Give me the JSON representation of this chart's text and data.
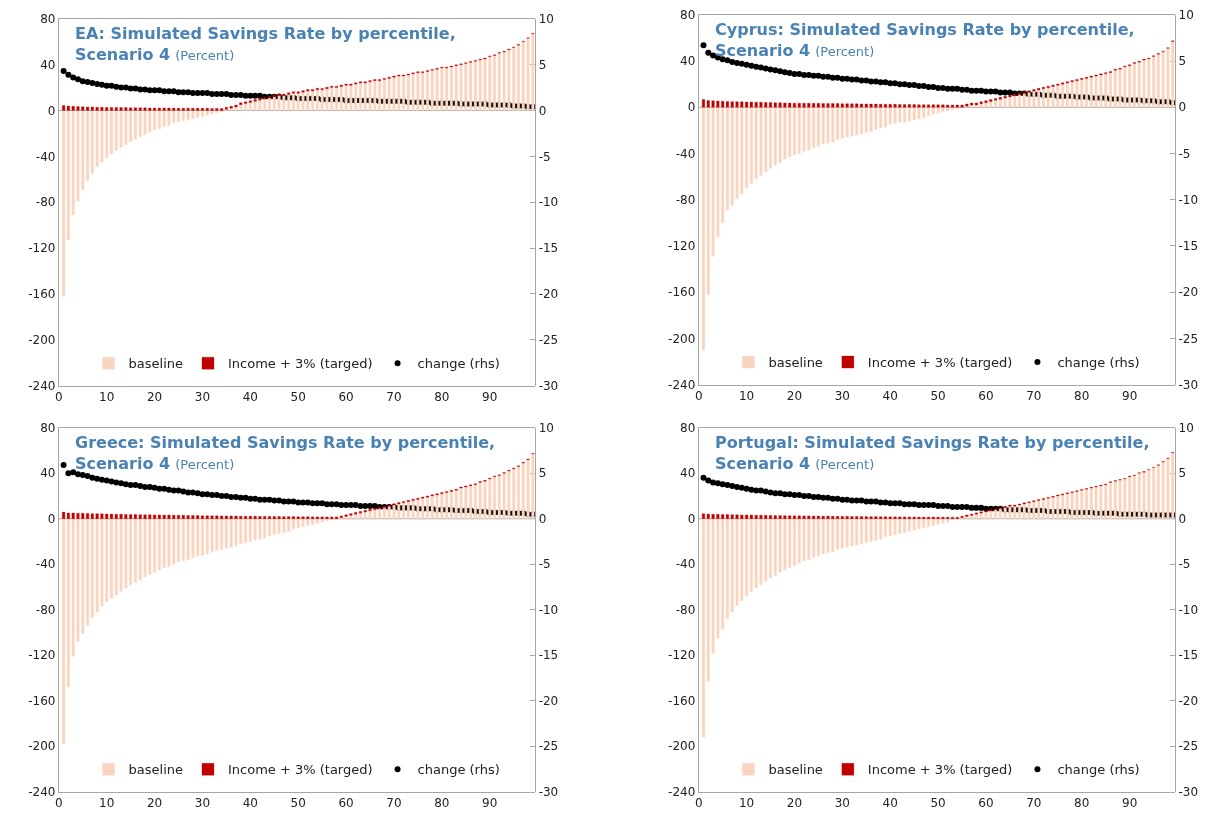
{
  "chart_data": [
    {
      "type": "bar",
      "title": "EA: Simulated Savings Rate by percentile, Scenario 4",
      "subtitle": "(Percent)",
      "stacked": true,
      "legend": "bottom",
      "grid": false,
      "ref_lines": [
        {
          "axis": "y",
          "value": 0,
          "color": "#a6a6a6"
        }
      ],
      "x": [
        1,
        2,
        3,
        4,
        5,
        6,
        7,
        8,
        9,
        10,
        11,
        12,
        13,
        14,
        15,
        16,
        17,
        18,
        19,
        20,
        21,
        22,
        23,
        24,
        25,
        26,
        27,
        28,
        29,
        30,
        31,
        32,
        33,
        34,
        35,
        36,
        37,
        38,
        39,
        40,
        41,
        42,
        43,
        44,
        45,
        46,
        47,
        48,
        49,
        50,
        51,
        52,
        53,
        54,
        55,
        56,
        57,
        58,
        59,
        60,
        61,
        62,
        63,
        64,
        65,
        66,
        67,
        68,
        69,
        70,
        71,
        72,
        73,
        74,
        75,
        76,
        77,
        78,
        79,
        80,
        81,
        82,
        83,
        84,
        85,
        86,
        87,
        88,
        89,
        90,
        91,
        92,
        93,
        94,
        95,
        96,
        97,
        98,
        99
      ],
      "xlim": [
        0,
        99.5
      ],
      "xticks": [
        0,
        10,
        20,
        30,
        40,
        50,
        60,
        70,
        80,
        90
      ],
      "ylim": [
        -240,
        80
      ],
      "yticks": [
        -240,
        -200,
        -160,
        -120,
        -80,
        -40,
        0,
        40,
        80
      ],
      "y2lim": [
        -30,
        10
      ],
      "y2ticks": [
        -30,
        -25,
        -20,
        -15,
        -10,
        -5,
        0,
        5,
        10
      ],
      "series": [
        {
          "name": "baseline",
          "type": "bar",
          "color": "#f9d5c0",
          "values": [
            -162,
            -113,
            -91,
            -79,
            -69,
            -61,
            -55,
            -49,
            -45,
            -41,
            -38,
            -35,
            -32,
            -30,
            -27,
            -25,
            -23,
            -21,
            -19,
            -17,
            -16,
            -14,
            -13,
            -11,
            -10,
            -9,
            -8,
            -7,
            -6,
            -5,
            -4,
            -3,
            -2,
            -1,
            1,
            2,
            3,
            5,
            6,
            7,
            8,
            9,
            10,
            11,
            12,
            13,
            13,
            14,
            15,
            15,
            16,
            17,
            17,
            18,
            18,
            19,
            20,
            20,
            21,
            22,
            22,
            23,
            24,
            24,
            25,
            26,
            26,
            27,
            28,
            29,
            30,
            30,
            31,
            32,
            33,
            33,
            34,
            35,
            36,
            37,
            37,
            38,
            39,
            40,
            41,
            42,
            43,
            44,
            45,
            47,
            48,
            50,
            51,
            53,
            55,
            57,
            60,
            63,
            67
          ]
        },
        {
          "name": "Income + 3% (targed)",
          "type": "bar",
          "color": "#c00000",
          "values": [
            4.3,
            3.9,
            3.6,
            3.4,
            3.2,
            3.1,
            3.0,
            2.9,
            2.8,
            2.7,
            2.7,
            2.6,
            2.5,
            2.5,
            2.4,
            2.4,
            2.3,
            2.3,
            2.2,
            2.2,
            2.2,
            2.1,
            2.1,
            2.1,
            2.0,
            2.0,
            2.0,
            1.9,
            1.9,
            1.9,
            1.9,
            1.8,
            1.8,
            1.8,
            1.8,
            1.7,
            1.7,
            1.7,
            1.6,
            1.6,
            1.6,
            1.6,
            1.5,
            1.5,
            1.5,
            1.5,
            1.4,
            1.4,
            1.4,
            1.3,
            1.3,
            1.3,
            1.3,
            1.3,
            1.2,
            1.2,
            1.2,
            1.2,
            1.2,
            1.1,
            1.1,
            1.1,
            1.1,
            1.1,
            1.1,
            1.1,
            1.0,
            1.0,
            1.0,
            1.0,
            1.0,
            1.0,
            0.9,
            0.9,
            0.9,
            0.9,
            0.9,
            0.8,
            0.8,
            0.8,
            0.8,
            0.8,
            0.8,
            0.7,
            0.7,
            0.7,
            0.7,
            0.7,
            0.7,
            0.6,
            0.6,
            0.6,
            0.6,
            0.6,
            0.5,
            0.5,
            0.5,
            0.4,
            0.4
          ]
        },
        {
          "name": "change (rhs)",
          "type": "scatter",
          "axis": "y2",
          "marker": "circle",
          "color": "#000000",
          "values": [
            4.3,
            3.9,
            3.6,
            3.4,
            3.2,
            3.1,
            3.0,
            2.9,
            2.8,
            2.7,
            2.7,
            2.6,
            2.5,
            2.5,
            2.4,
            2.4,
            2.3,
            2.3,
            2.2,
            2.2,
            2.2,
            2.1,
            2.1,
            2.1,
            2.0,
            2.0,
            2.0,
            1.9,
            1.9,
            1.9,
            1.9,
            1.8,
            1.8,
            1.8,
            1.8,
            1.7,
            1.7,
            1.7,
            1.6,
            1.6,
            1.6,
            1.6,
            1.5,
            1.5,
            1.5,
            1.5,
            1.4,
            1.4,
            1.4,
            1.3,
            1.3,
            1.3,
            1.3,
            1.3,
            1.2,
            1.2,
            1.2,
            1.2,
            1.2,
            1.1,
            1.1,
            1.1,
            1.1,
            1.1,
            1.1,
            1.1,
            1.0,
            1.0,
            1.0,
            1.0,
            1.0,
            1.0,
            0.9,
            0.9,
            0.9,
            0.9,
            0.9,
            0.8,
            0.8,
            0.8,
            0.8,
            0.8,
            0.8,
            0.7,
            0.7,
            0.7,
            0.7,
            0.7,
            0.7,
            0.6,
            0.6,
            0.6,
            0.6,
            0.6,
            0.5,
            0.5,
            0.5,
            0.4,
            0.4
          ]
        }
      ]
    },
    {
      "type": "bar",
      "title": "Cyprus: Simulated Savings Rate by percentile, Scenario 4",
      "subtitle": "(Percent)",
      "stacked": true,
      "legend": "bottom",
      "grid": false,
      "ref_lines": [
        {
          "axis": "y",
          "value": 0,
          "color": "#a6a6a6"
        }
      ],
      "x": [
        1,
        2,
        3,
        4,
        5,
        6,
        7,
        8,
        9,
        10,
        11,
        12,
        13,
        14,
        15,
        16,
        17,
        18,
        19,
        20,
        21,
        22,
        23,
        24,
        25,
        26,
        27,
        28,
        29,
        30,
        31,
        32,
        33,
        34,
        35,
        36,
        37,
        38,
        39,
        40,
        41,
        42,
        43,
        44,
        45,
        46,
        47,
        48,
        49,
        50,
        51,
        52,
        53,
        54,
        55,
        56,
        57,
        58,
        59,
        60,
        61,
        62,
        63,
        64,
        65,
        66,
        67,
        68,
        69,
        70,
        71,
        72,
        73,
        74,
        75,
        76,
        77,
        78,
        79,
        80,
        81,
        82,
        83,
        84,
        85,
        86,
        87,
        88,
        89,
        90,
        91,
        92,
        93,
        94,
        95,
        96,
        97,
        98,
        99
      ],
      "xlim": [
        0,
        99.5
      ],
      "xticks": [
        0,
        10,
        20,
        30,
        40,
        50,
        60,
        70,
        80,
        90
      ],
      "ylim": [
        -240,
        80
      ],
      "yticks": [
        -240,
        -200,
        -160,
        -120,
        -80,
        -40,
        0,
        40,
        80
      ],
      "y2lim": [
        -30,
        10
      ],
      "y2ticks": [
        -30,
        -25,
        -20,
        -15,
        -10,
        -5,
        0,
        5,
        10
      ],
      "series": [
        {
          "name": "baseline",
          "type": "bar",
          "color": "#f9d5c0",
          "values": [
            -210,
            -162,
            -129,
            -112,
            -100,
            -89,
            -85,
            -79,
            -75,
            -70,
            -66,
            -62,
            -59,
            -56,
            -53,
            -50,
            -48,
            -45,
            -43,
            -41,
            -40,
            -38,
            -37,
            -35,
            -34,
            -32,
            -31,
            -30,
            -28,
            -27,
            -26,
            -25,
            -24,
            -23,
            -22,
            -21,
            -19,
            -18,
            -17,
            -15,
            -14,
            -13,
            -13,
            -12,
            -11,
            -10,
            -9,
            -7,
            -6,
            -5,
            -4,
            -3,
            -2,
            -1,
            0,
            1,
            2,
            2,
            3,
            4,
            5,
            6,
            7,
            8,
            9,
            10,
            11,
            12,
            13,
            14,
            15,
            16,
            17,
            18,
            19,
            20,
            21,
            22,
            23,
            24,
            25,
            26,
            27,
            28,
            29,
            30,
            32,
            33,
            35,
            36,
            38,
            39,
            41,
            42,
            44,
            46,
            48,
            51,
            57
          ]
        },
        {
          "name": "Income + 3% (targed)",
          "type": "bar",
          "color": "#c00000",
          "values": [
            6.7,
            5.9,
            5.6,
            5.4,
            5.2,
            5.1,
            4.9,
            4.8,
            4.7,
            4.6,
            4.5,
            4.4,
            4.3,
            4.2,
            4.1,
            4.0,
            3.9,
            3.8,
            3.7,
            3.6,
            3.6,
            3.5,
            3.5,
            3.4,
            3.4,
            3.3,
            3.3,
            3.2,
            3.2,
            3.1,
            3.1,
            3.0,
            3.0,
            2.9,
            2.9,
            2.8,
            2.8,
            2.7,
            2.7,
            2.6,
            2.6,
            2.5,
            2.5,
            2.4,
            2.4,
            2.3,
            2.3,
            2.2,
            2.2,
            2.1,
            2.1,
            2.0,
            2.0,
            2.0,
            1.9,
            1.9,
            1.8,
            1.8,
            1.8,
            1.7,
            1.7,
            1.7,
            1.6,
            1.6,
            1.6,
            1.5,
            1.5,
            1.5,
            1.4,
            1.4,
            1.4,
            1.3,
            1.3,
            1.3,
            1.2,
            1.2,
            1.2,
            1.2,
            1.1,
            1.1,
            1.1,
            1.0,
            1.0,
            1.0,
            1.0,
            0.9,
            0.9,
            0.9,
            0.8,
            0.8,
            0.8,
            0.8,
            0.7,
            0.7,
            0.7,
            0.6,
            0.6,
            0.6,
            0.5
          ]
        },
        {
          "name": "change (rhs)",
          "type": "scatter",
          "axis": "y2",
          "marker": "circle",
          "color": "#000000",
          "values": [
            6.7,
            5.9,
            5.6,
            5.4,
            5.2,
            5.1,
            4.9,
            4.8,
            4.7,
            4.6,
            4.5,
            4.4,
            4.3,
            4.2,
            4.1,
            4.0,
            3.9,
            3.8,
            3.7,
            3.6,
            3.6,
            3.5,
            3.5,
            3.4,
            3.4,
            3.3,
            3.3,
            3.2,
            3.2,
            3.1,
            3.1,
            3.0,
            3.0,
            2.9,
            2.9,
            2.8,
            2.8,
            2.7,
            2.7,
            2.6,
            2.6,
            2.5,
            2.5,
            2.4,
            2.4,
            2.3,
            2.3,
            2.2,
            2.2,
            2.1,
            2.1,
            2.0,
            2.0,
            2.0,
            1.9,
            1.9,
            1.8,
            1.8,
            1.8,
            1.7,
            1.7,
            1.7,
            1.6,
            1.6,
            1.6,
            1.5,
            1.5,
            1.5,
            1.4,
            1.4,
            1.4,
            1.3,
            1.3,
            1.3,
            1.2,
            1.2,
            1.2,
            1.2,
            1.1,
            1.1,
            1.1,
            1.0,
            1.0,
            1.0,
            1.0,
            0.9,
            0.9,
            0.9,
            0.8,
            0.8,
            0.8,
            0.8,
            0.7,
            0.7,
            0.7,
            0.6,
            0.6,
            0.6,
            0.5
          ]
        }
      ]
    },
    {
      "type": "bar",
      "title": "Greece: Simulated Savings Rate by percentile, Scenario 4",
      "subtitle": "(Percent)",
      "stacked": true,
      "legend": "bottom",
      "grid": false,
      "ref_lines": [
        {
          "axis": "y",
          "value": 0,
          "color": "#a6a6a6"
        }
      ],
      "x": [
        1,
        2,
        3,
        4,
        5,
        6,
        7,
        8,
        9,
        10,
        11,
        12,
        13,
        14,
        15,
        16,
        17,
        18,
        19,
        20,
        21,
        22,
        23,
        24,
        25,
        26,
        27,
        28,
        29,
        30,
        31,
        32,
        33,
        34,
        35,
        36,
        37,
        38,
        39,
        40,
        41,
        42,
        43,
        44,
        45,
        46,
        47,
        48,
        49,
        50,
        51,
        52,
        53,
        54,
        55,
        56,
        57,
        58,
        59,
        60,
        61,
        62,
        63,
        64,
        65,
        66,
        67,
        68,
        69,
        70,
        71,
        72,
        73,
        74,
        75,
        76,
        77,
        78,
        79,
        80,
        81,
        82,
        83,
        84,
        85,
        86,
        87,
        88,
        89,
        90,
        91,
        92,
        93,
        94,
        95,
        96,
        97,
        98,
        99
      ],
      "xlim": [
        0,
        99.5
      ],
      "xticks": [
        0,
        10,
        20,
        30,
        40,
        50,
        60,
        70,
        80,
        90
      ],
      "ylim": [
        -240,
        80
      ],
      "yticks": [
        -240,
        -200,
        -160,
        -120,
        -80,
        -40,
        0,
        40,
        80
      ],
      "y2lim": [
        -30,
        10
      ],
      "y2ticks": [
        -30,
        -25,
        -20,
        -15,
        -10,
        -5,
        0,
        5,
        10
      ],
      "series": [
        {
          "name": "baseline",
          "type": "bar",
          "color": "#f9d5c0",
          "values": [
            -198,
            -148,
            -121,
            -108,
            -101,
            -94,
            -87,
            -82,
            -77,
            -73,
            -70,
            -67,
            -64,
            -61,
            -58,
            -56,
            -54,
            -51,
            -49,
            -47,
            -45,
            -43,
            -42,
            -40,
            -38,
            -37,
            -36,
            -34,
            -33,
            -32,
            -31,
            -29,
            -28,
            -27,
            -26,
            -25,
            -24,
            -22,
            -21,
            -20,
            -19,
            -18,
            -17,
            -15,
            -14,
            -13,
            -12,
            -11,
            -9,
            -8,
            -7,
            -6,
            -5,
            -4,
            -3,
            -2,
            -1,
            0,
            1,
            2,
            3,
            4,
            5,
            6,
            7,
            8,
            9,
            10,
            11,
            12,
            13,
            14,
            15,
            16,
            17,
            18,
            19,
            20,
            21,
            22,
            23,
            24,
            25,
            27,
            28,
            29,
            30,
            32,
            33,
            35,
            37,
            38,
            40,
            42,
            44,
            46,
            49,
            52,
            57
          ]
        },
        {
          "name": "Income + 3% (targed)",
          "type": "bar",
          "color": "#c00000",
          "values": [
            5.9,
            5.0,
            5.1,
            4.9,
            4.8,
            4.7,
            4.5,
            4.4,
            4.3,
            4.2,
            4.1,
            4.0,
            3.9,
            3.8,
            3.7,
            3.7,
            3.6,
            3.5,
            3.5,
            3.4,
            3.3,
            3.3,
            3.2,
            3.1,
            3.1,
            3.0,
            2.9,
            2.9,
            2.8,
            2.7,
            2.7,
            2.6,
            2.6,
            2.5,
            2.5,
            2.4,
            2.4,
            2.3,
            2.3,
            2.2,
            2.2,
            2.1,
            2.1,
            2.1,
            2.0,
            2.0,
            1.9,
            1.9,
            1.9,
            1.8,
            1.8,
            1.8,
            1.7,
            1.7,
            1.7,
            1.6,
            1.6,
            1.6,
            1.5,
            1.5,
            1.5,
            1.5,
            1.4,
            1.4,
            1.4,
            1.4,
            1.3,
            1.3,
            1.3,
            1.3,
            1.2,
            1.2,
            1.2,
            1.2,
            1.1,
            1.1,
            1.1,
            1.1,
            1.0,
            1.0,
            1.0,
            1.0,
            0.9,
            0.9,
            0.9,
            0.9,
            0.8,
            0.8,
            0.8,
            0.7,
            0.7,
            0.7,
            0.7,
            0.6,
            0.6,
            0.6,
            0.6,
            0.5,
            0.5
          ]
        },
        {
          "name": "change (rhs)",
          "type": "scatter",
          "axis": "y2",
          "marker": "circle",
          "color": "#000000",
          "values": [
            5.9,
            5.0,
            5.1,
            4.9,
            4.8,
            4.7,
            4.5,
            4.4,
            4.3,
            4.2,
            4.1,
            4.0,
            3.9,
            3.8,
            3.7,
            3.7,
            3.6,
            3.5,
            3.5,
            3.4,
            3.3,
            3.3,
            3.2,
            3.1,
            3.1,
            3.0,
            2.9,
            2.9,
            2.8,
            2.7,
            2.7,
            2.6,
            2.6,
            2.5,
            2.5,
            2.4,
            2.4,
            2.3,
            2.3,
            2.2,
            2.2,
            2.1,
            2.1,
            2.1,
            2.0,
            2.0,
            1.9,
            1.9,
            1.9,
            1.8,
            1.8,
            1.8,
            1.7,
            1.7,
            1.7,
            1.6,
            1.6,
            1.6,
            1.5,
            1.5,
            1.5,
            1.5,
            1.4,
            1.4,
            1.4,
            1.4,
            1.3,
            1.3,
            1.3,
            1.3,
            1.2,
            1.2,
            1.2,
            1.2,
            1.1,
            1.1,
            1.1,
            1.1,
            1.0,
            1.0,
            1.0,
            1.0,
            0.9,
            0.9,
            0.9,
            0.9,
            0.8,
            0.8,
            0.8,
            0.7,
            0.7,
            0.7,
            0.7,
            0.6,
            0.6,
            0.6,
            0.6,
            0.5,
            0.5
          ]
        }
      ]
    },
    {
      "type": "bar",
      "title": "Portugal: Simulated Savings Rate by percentile, Scenario 4",
      "subtitle": "(Percent)",
      "stacked": true,
      "legend": "bottom",
      "grid": false,
      "ref_lines": [
        {
          "axis": "y",
          "value": 0,
          "color": "#a6a6a6"
        }
      ],
      "x": [
        1,
        2,
        3,
        4,
        5,
        6,
        7,
        8,
        9,
        10,
        11,
        12,
        13,
        14,
        15,
        16,
        17,
        18,
        19,
        20,
        21,
        22,
        23,
        24,
        25,
        26,
        27,
        28,
        29,
        30,
        31,
        32,
        33,
        34,
        35,
        36,
        37,
        38,
        39,
        40,
        41,
        42,
        43,
        44,
        45,
        46,
        47,
        48,
        49,
        50,
        51,
        52,
        53,
        54,
        55,
        56,
        57,
        58,
        59,
        60,
        61,
        62,
        63,
        64,
        65,
        66,
        67,
        68,
        69,
        70,
        71,
        72,
        73,
        74,
        75,
        76,
        77,
        78,
        79,
        80,
        81,
        82,
        83,
        84,
        85,
        86,
        87,
        88,
        89,
        90,
        91,
        92,
        93,
        94,
        95,
        96,
        97,
        98,
        99
      ],
      "xlim": [
        0,
        99.5
      ],
      "xticks": [
        0,
        10,
        20,
        30,
        40,
        50,
        60,
        70,
        80,
        90
      ],
      "ylim": [
        -240,
        80
      ],
      "yticks": [
        -240,
        -200,
        -160,
        -120,
        -80,
        -40,
        0,
        40,
        80
      ],
      "y2lim": [
        -30,
        10
      ],
      "y2ticks": [
        -30,
        -25,
        -20,
        -15,
        -10,
        -5,
        0,
        5,
        10
      ],
      "series": [
        {
          "name": "baseline",
          "type": "bar",
          "color": "#f9d5c0",
          "values": [
            -192,
            -143,
            -118,
            -105,
            -97,
            -88,
            -82,
            -76,
            -72,
            -68,
            -64,
            -61,
            -58,
            -55,
            -52,
            -50,
            -47,
            -45,
            -43,
            -41,
            -39,
            -37,
            -36,
            -34,
            -33,
            -31,
            -30,
            -29,
            -27,
            -26,
            -25,
            -24,
            -23,
            -22,
            -21,
            -20,
            -19,
            -18,
            -16,
            -15,
            -14,
            -13,
            -12,
            -11,
            -10,
            -9,
            -8,
            -7,
            -6,
            -5,
            -4,
            -3,
            -1,
            0,
            1,
            2,
            3,
            4,
            5,
            6,
            7,
            8,
            9,
            10,
            11,
            11,
            12,
            13,
            14,
            15,
            16,
            17,
            18,
            19,
            20,
            21,
            22,
            23,
            24,
            25,
            26,
            27,
            28,
            29,
            30,
            32,
            33,
            34,
            35,
            37,
            38,
            40,
            41,
            43,
            45,
            47,
            50,
            53,
            58
          ]
        },
        {
          "name": "Income + 3% (targed)",
          "type": "bar",
          "color": "#c00000",
          "values": [
            4.5,
            4.2,
            4.0,
            3.9,
            3.8,
            3.7,
            3.6,
            3.5,
            3.4,
            3.3,
            3.2,
            3.1,
            3.1,
            3.0,
            2.9,
            2.8,
            2.8,
            2.7,
            2.7,
            2.6,
            2.6,
            2.5,
            2.5,
            2.4,
            2.4,
            2.3,
            2.3,
            2.2,
            2.2,
            2.1,
            2.1,
            2.0,
            2.0,
            2.0,
            1.9,
            1.9,
            1.9,
            1.8,
            1.8,
            1.7,
            1.7,
            1.7,
            1.6,
            1.6,
            1.6,
            1.5,
            1.5,
            1.5,
            1.5,
            1.4,
            1.4,
            1.4,
            1.3,
            1.3,
            1.3,
            1.3,
            1.2,
            1.2,
            1.2,
            1.1,
            1.1,
            1.1,
            1.1,
            1.0,
            1.0,
            1.0,
            1.0,
            1.0,
            0.9,
            0.9,
            0.9,
            0.9,
            0.8,
            0.8,
            0.8,
            0.8,
            0.8,
            0.7,
            0.7,
            0.7,
            0.7,
            0.7,
            0.6,
            0.6,
            0.6,
            0.6,
            0.6,
            0.5,
            0.5,
            0.5,
            0.5,
            0.5,
            0.5,
            0.4,
            0.4,
            0.4,
            0.4,
            0.4,
            0.4
          ]
        },
        {
          "name": "change (rhs)",
          "type": "scatter",
          "axis": "y2",
          "marker": "circle",
          "color": "#000000",
          "values": [
            4.5,
            4.2,
            4.0,
            3.9,
            3.8,
            3.7,
            3.6,
            3.5,
            3.4,
            3.3,
            3.2,
            3.1,
            3.1,
            3.0,
            2.9,
            2.8,
            2.8,
            2.7,
            2.7,
            2.6,
            2.6,
            2.5,
            2.5,
            2.4,
            2.4,
            2.3,
            2.3,
            2.2,
            2.2,
            2.1,
            2.1,
            2.0,
            2.0,
            2.0,
            1.9,
            1.9,
            1.9,
            1.8,
            1.8,
            1.7,
            1.7,
            1.7,
            1.6,
            1.6,
            1.6,
            1.5,
            1.5,
            1.5,
            1.5,
            1.4,
            1.4,
            1.4,
            1.3,
            1.3,
            1.3,
            1.3,
            1.2,
            1.2,
            1.2,
            1.1,
            1.1,
            1.1,
            1.1,
            1.0,
            1.0,
            1.0,
            1.0,
            1.0,
            0.9,
            0.9,
            0.9,
            0.9,
            0.8,
            0.8,
            0.8,
            0.8,
            0.8,
            0.7,
            0.7,
            0.7,
            0.7,
            0.7,
            0.6,
            0.6,
            0.6,
            0.6,
            0.6,
            0.5,
            0.5,
            0.5,
            0.5,
            0.5,
            0.5,
            0.4,
            0.4,
            0.4,
            0.4,
            0.4,
            0.4
          ]
        }
      ]
    }
  ]
}
